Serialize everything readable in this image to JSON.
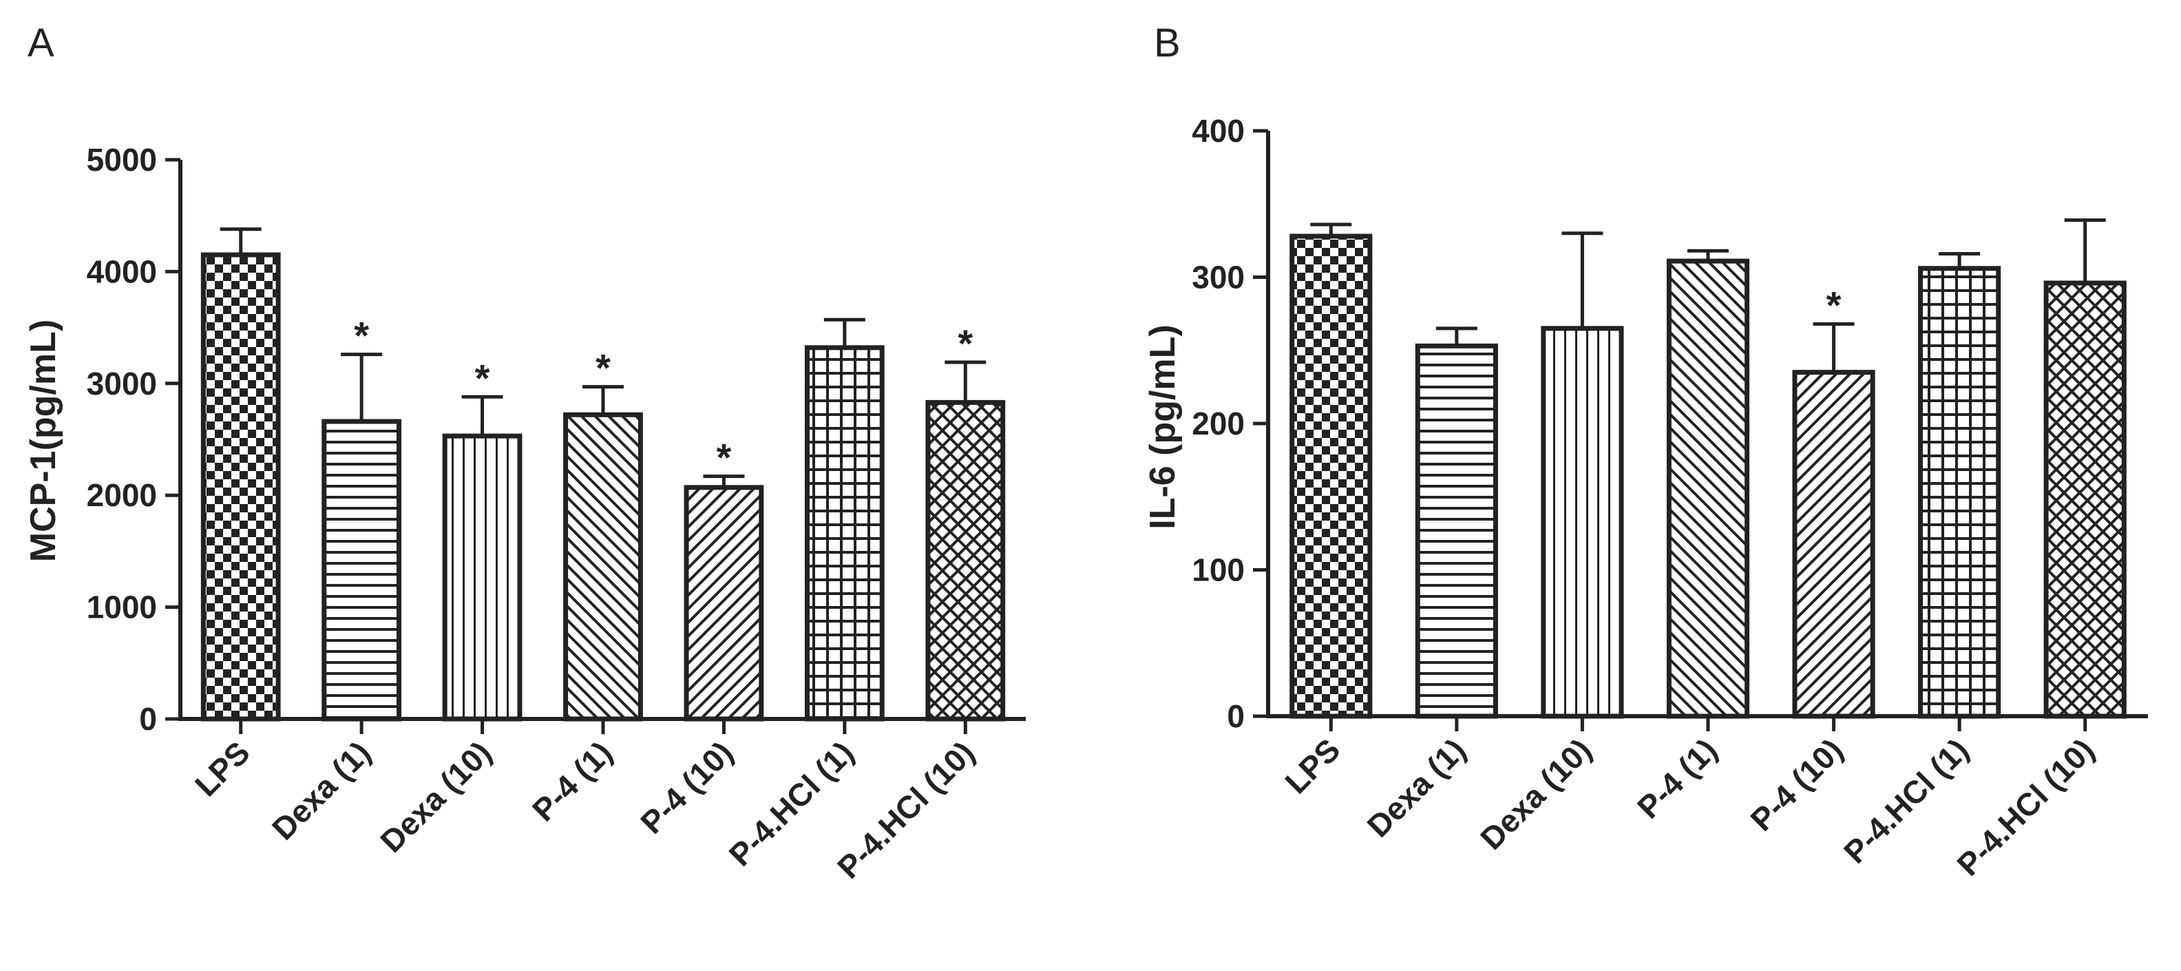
{
  "chart_data": [
    {
      "panel": "A",
      "type": "bar",
      "ylabel": "MCP-1(pg/mL)",
      "xlabel": "",
      "ylim": [
        0,
        5000
      ],
      "yticks": [
        0,
        1000,
        2000,
        3000,
        4000,
        5000
      ],
      "categories": [
        "LPS",
        "Dexa (1)",
        "Dexa (10)",
        "P-4 (1)",
        "P-4 (10)",
        "P-4.HCl (1)",
        "P-4.HCl (10)"
      ],
      "values": [
        4150,
        2660,
        2530,
        2720,
        2070,
        3320,
        2830
      ],
      "errors": [
        230,
        600,
        350,
        250,
        100,
        250,
        360
      ],
      "significance": [
        "",
        "*",
        "*",
        "*",
        "*",
        "",
        "*"
      ],
      "patterns": [
        "checker",
        "hlines",
        "vlines",
        "diag-up",
        "diag-down",
        "grid",
        "diamond"
      ]
    },
    {
      "panel": "B",
      "type": "bar",
      "ylabel": "IL-6 (pg/mL)",
      "xlabel": "",
      "ylim": [
        0,
        400
      ],
      "yticks": [
        0,
        100,
        200,
        300,
        400
      ],
      "categories": [
        "LPS",
        "Dexa (1)",
        "Dexa (10)",
        "P-4 (1)",
        "P-4 (10)",
        "P-4.HCl (1)",
        "P-4.HCl (10)"
      ],
      "values": [
        328,
        253,
        265,
        311,
        235,
        306,
        296
      ],
      "errors": [
        8,
        12,
        65,
        7,
        33,
        10,
        43
      ],
      "significance": [
        "",
        "",
        "",
        "",
        "*",
        "",
        ""
      ],
      "patterns": [
        "checker",
        "hlines",
        "vlines",
        "diag-up",
        "diag-down",
        "grid",
        "diamond"
      ]
    }
  ],
  "panel_labels": [
    "A",
    "B"
  ],
  "colors": {
    "ink": "#222222",
    "fill": "#ffffff"
  }
}
